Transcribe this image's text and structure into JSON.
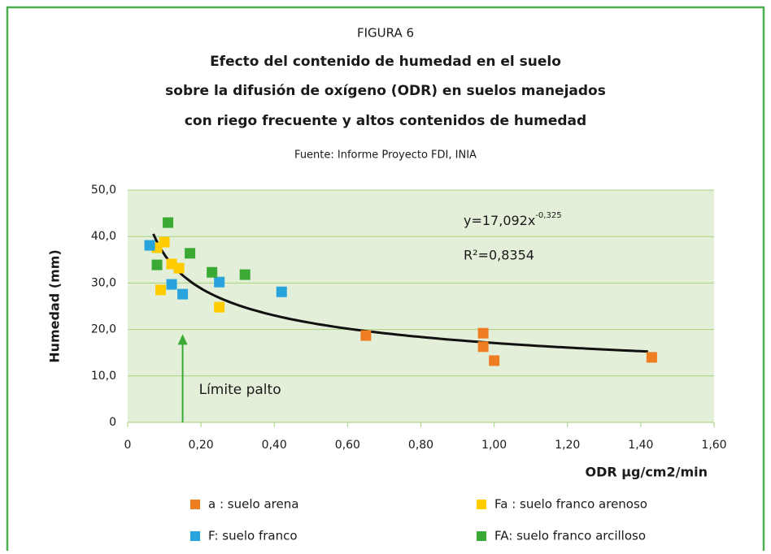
{
  "chart_data": {
    "type": "scatter",
    "figure_label": "FIGURA 6",
    "title": [
      "Efecto del contenido de humedad en el suelo",
      "sobre la difusión de oxígeno (ODR) en suelos manejados",
      "con riego frecuente y altos contenidos de humedad"
    ],
    "subtitle": "Fuente: Informe Proyecto FDI, INIA",
    "xlabel": "ODR µg/cm2/min",
    "ylabel": "Humedad (mm)",
    "xlim": [
      0,
      1.6
    ],
    "ylim": [
      0,
      50
    ],
    "xticks": [
      0,
      {
        "value": 0.2,
        "label": "0,20"
      },
      {
        "value": 0.4,
        "label": "0,40"
      },
      {
        "value": 0.6,
        "label": "0,60"
      },
      {
        "value": 0.8,
        "label": "0,80"
      },
      {
        "value": 1.0,
        "label": "1,00"
      },
      {
        "value": 1.2,
        "label": "1,20"
      },
      {
        "value": 1.4,
        "label": "1,40"
      },
      {
        "value": 1.6,
        "label": "1,60"
      }
    ],
    "yticks": [
      0,
      {
        "value": 10,
        "label": "10,0"
      },
      {
        "value": 20,
        "label": "20,0"
      },
      {
        "value": 30,
        "label": "30,0"
      },
      {
        "value": 40,
        "label": "40,0"
      },
      {
        "value": 50,
        "label": "50,0"
      }
    ],
    "grid": true,
    "series": [
      {
        "name": "a : suelo arena",
        "color": "#ef7d22",
        "x": [
          0.65,
          0.97,
          0.97,
          1.0,
          1.43
        ],
        "values": [
          18.7,
          19.2,
          16.3,
          13.3,
          14.0
        ]
      },
      {
        "name": "Fa : suelo franco arenoso",
        "color": "#ffcc00",
        "x": [
          0.08,
          0.1,
          0.09,
          0.12,
          0.14,
          0.25
        ],
        "values": [
          37.6,
          38.8,
          28.5,
          34.1,
          33.2,
          24.8
        ]
      },
      {
        "name": "F: suelo franco",
        "color": "#29a3dc",
        "x": [
          0.06,
          0.12,
          0.15,
          0.25,
          0.42
        ],
        "values": [
          38.1,
          29.7,
          27.6,
          30.2,
          28.1
        ]
      },
      {
        "name": "FA: suelo franco arcilloso",
        "color": "#3aaa35",
        "x": [
          0.11,
          0.08,
          0.17,
          0.23,
          0.32
        ],
        "values": [
          43.0,
          33.9,
          36.4,
          32.3,
          31.8
        ]
      }
    ],
    "trendline": {
      "coefficient": 17.092,
      "exponent": -0.325,
      "x": [
        0.07,
        1.42
      ],
      "equation": "y=17,092x",
      "equation_exponent": "-0,325",
      "r_squared": "R²=0,8354"
    },
    "annotation": {
      "text": "Límite palto",
      "x": 0.15,
      "y": [
        0,
        19
      ]
    }
  }
}
